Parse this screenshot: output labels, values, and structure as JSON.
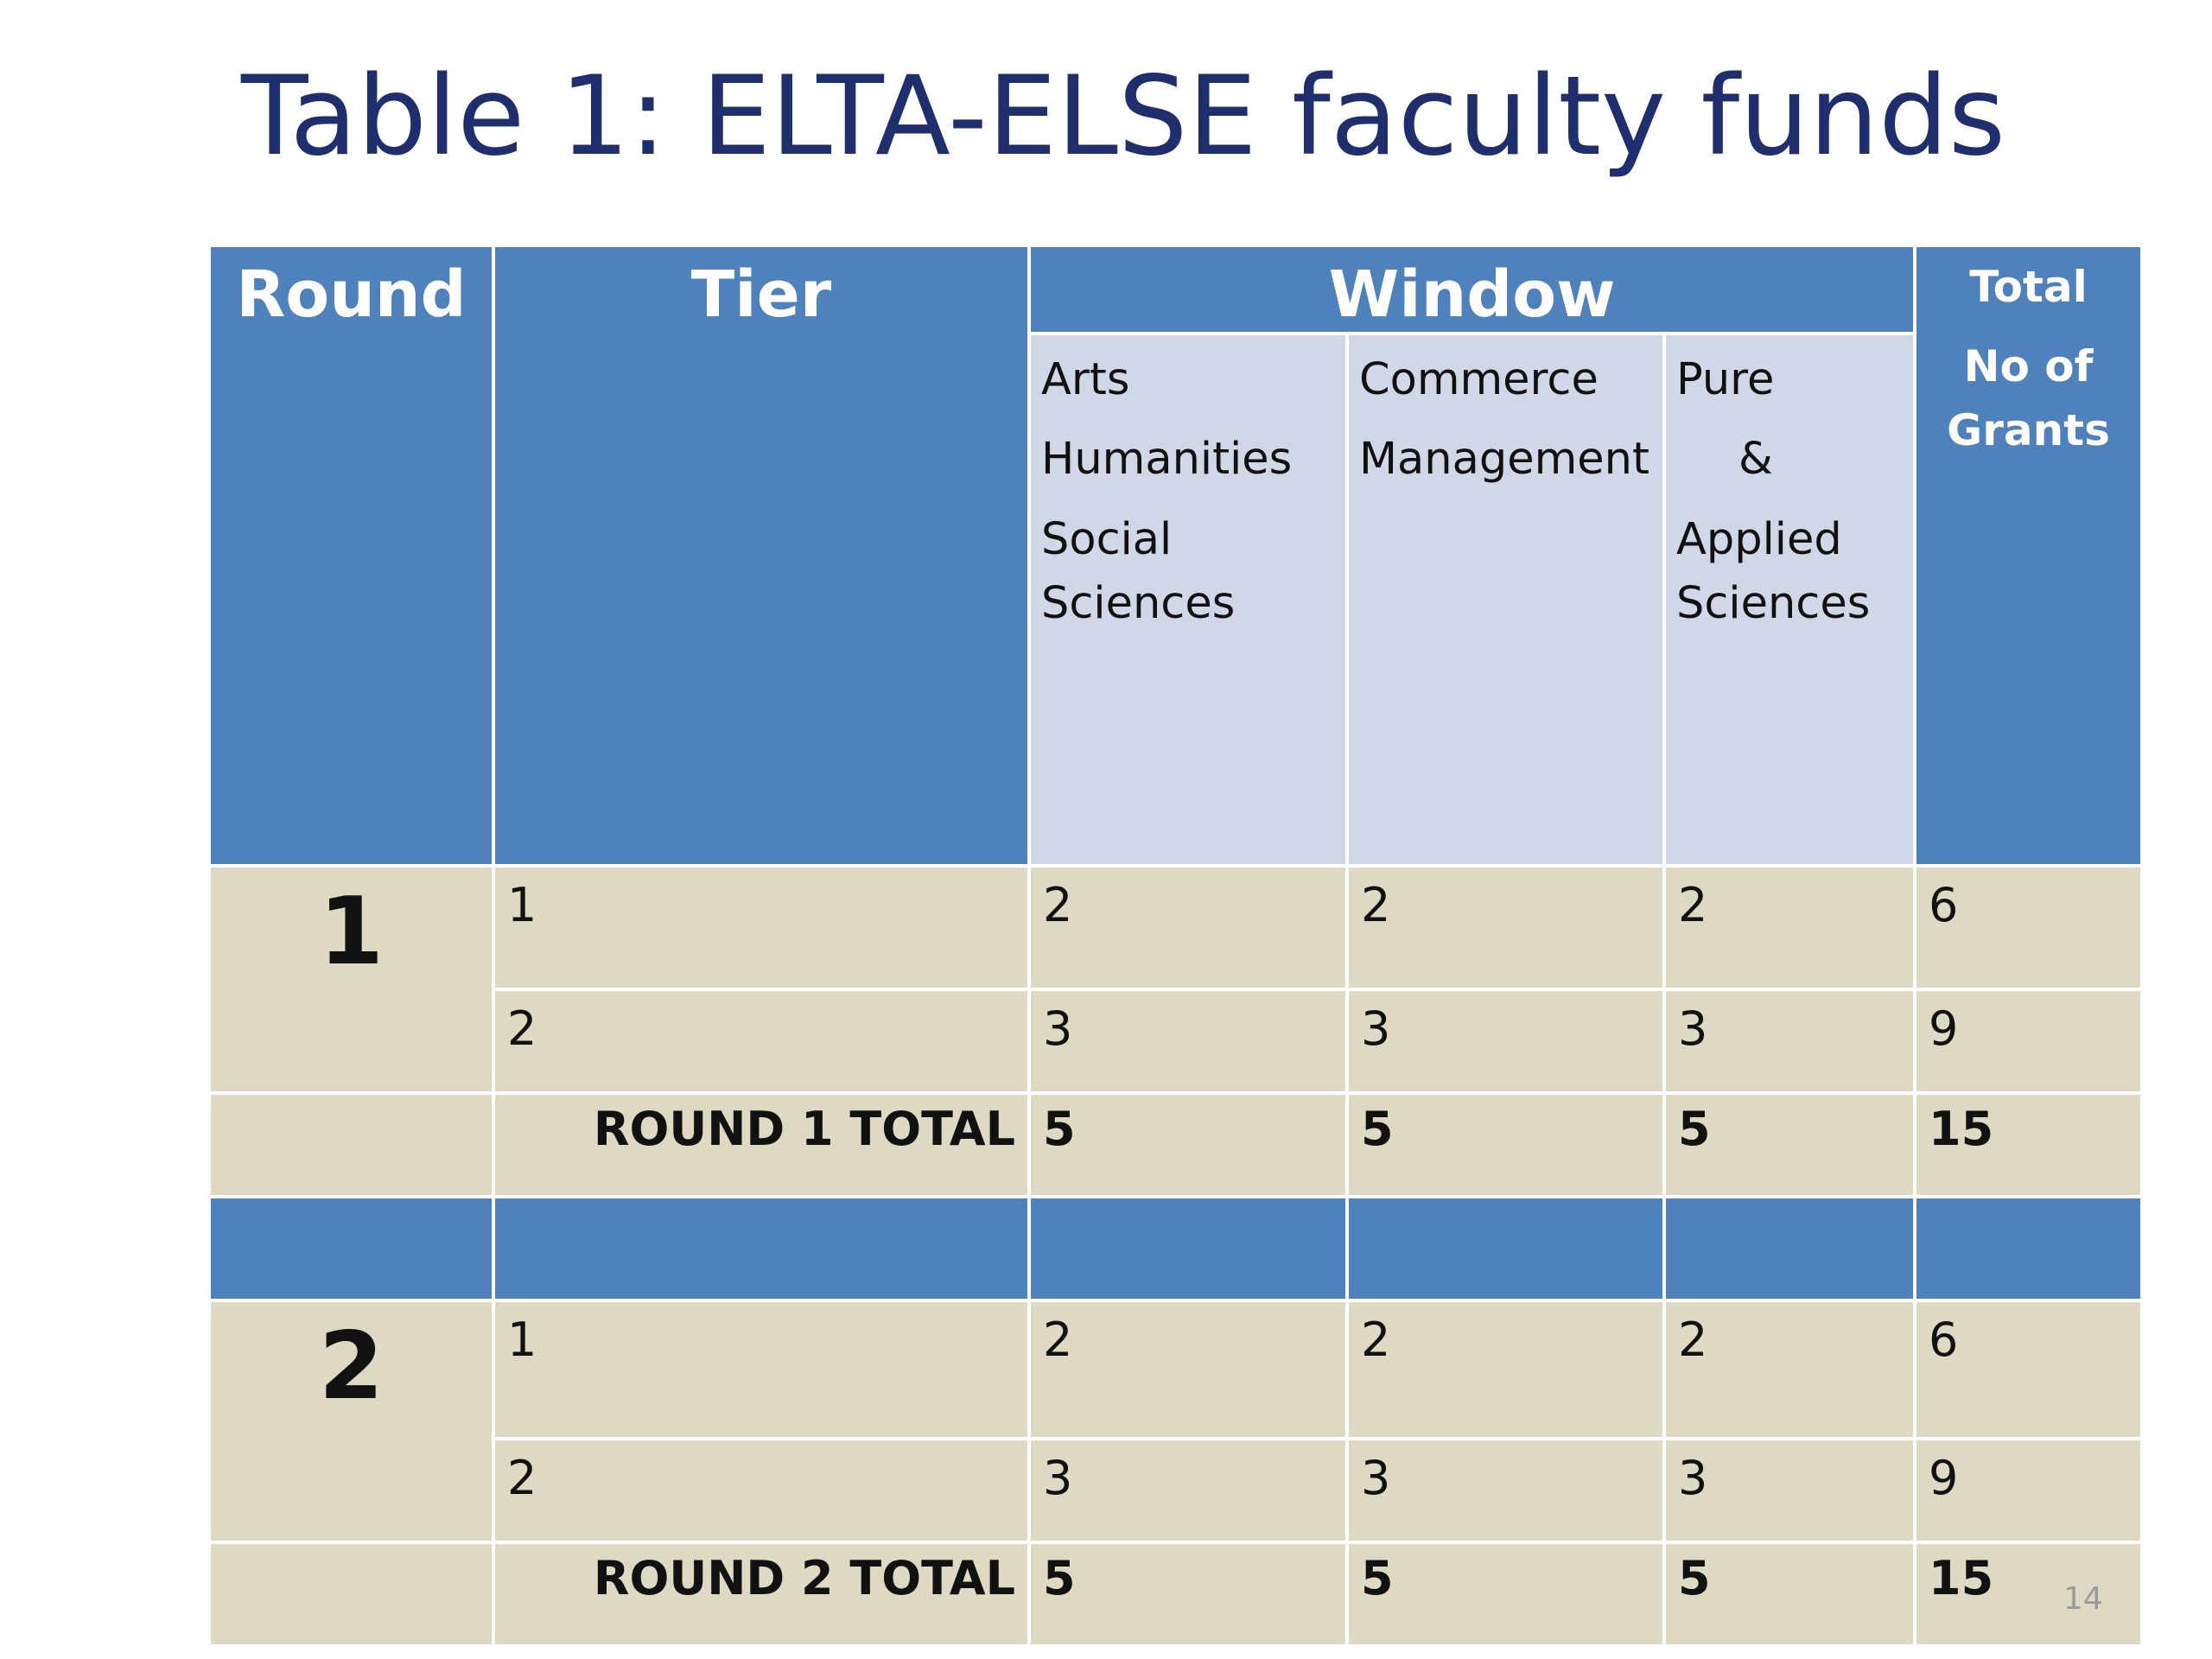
{
  "title": "Table 1: ELTA-ELSE faculty funds",
  "header": {
    "round": "Round",
    "tier": "Tier",
    "window": "Window",
    "total_line1": "Total",
    "total_line2": "No of",
    "total_line3": "Grants"
  },
  "windows": {
    "arts": [
      "Arts",
      "Humanities",
      "Social",
      "Sciences"
    ],
    "commerce": [
      "Commerce",
      "Management"
    ],
    "pure": [
      "Pure",
      "&",
      "Applied",
      "Sciences"
    ]
  },
  "rounds": [
    {
      "label": "1",
      "rows": [
        {
          "tier": "1",
          "arts": "2",
          "commerce": "2",
          "pure": "2",
          "total": "6"
        },
        {
          "tier": "2",
          "arts": "3",
          "commerce": "3",
          "pure": "3",
          "total": "9"
        }
      ],
      "total_row": {
        "label": "ROUND 1 TOTAL",
        "arts": "5",
        "commerce": "5",
        "pure": "5",
        "total": "15"
      }
    },
    {
      "label": "2",
      "rows": [
        {
          "tier": "1",
          "arts": "2",
          "commerce": "2",
          "pure": "2",
          "total": "6"
        },
        {
          "tier": "2",
          "arts": "3",
          "commerce": "3",
          "pure": "3",
          "total": "9"
        }
      ],
      "total_row": {
        "label": "ROUND 2 TOTAL",
        "arts": "5",
        "commerce": "5",
        "pure": "5",
        "total": "15"
      }
    }
  ],
  "page_number": "14",
  "colors": {
    "title": "#1f2f6d",
    "header_blue": "#4f81bd",
    "subheader": "#d0d8e8",
    "body_beige": "#ddd9c3"
  }
}
